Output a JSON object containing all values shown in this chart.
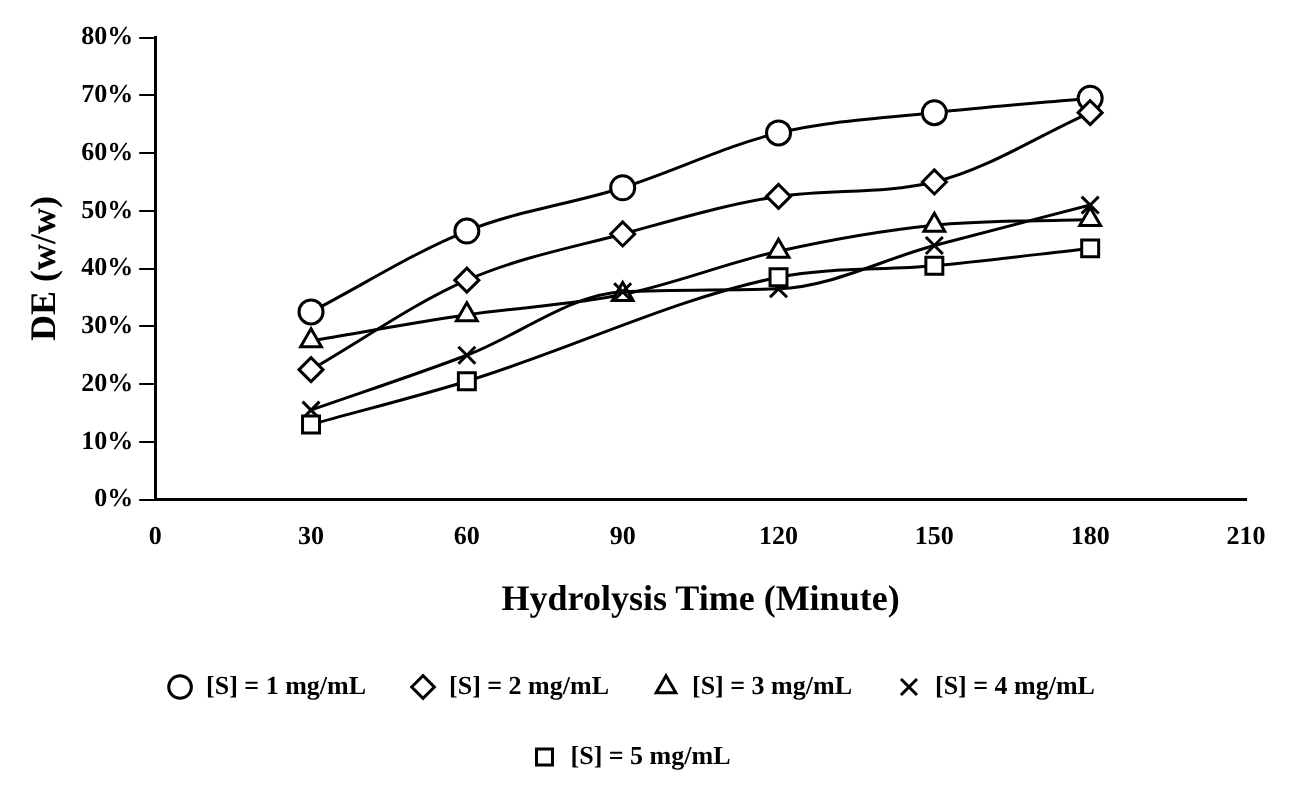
{
  "chart_data": {
    "type": "line",
    "xlabel": "Hydrolysis Time (Minute)",
    "ylabel": "DE (w/w)",
    "xlim": [
      0,
      210
    ],
    "xticks": [
      0,
      30,
      60,
      90,
      120,
      150,
      180,
      210
    ],
    "ylim": [
      0,
      80
    ],
    "yticks": [
      {
        "value": 0,
        "label": "0%"
      },
      {
        "value": 10,
        "label": "10%"
      },
      {
        "value": 20,
        "label": "20%"
      },
      {
        "value": 30,
        "label": "30%"
      },
      {
        "value": 40,
        "label": "40%"
      },
      {
        "value": 50,
        "label": "50%"
      },
      {
        "value": 60,
        "label": "60%"
      },
      {
        "value": 70,
        "label": "70%"
      },
      {
        "value": 80,
        "label": "80%"
      }
    ],
    "grid": false,
    "legend": "bottom",
    "line_style": "solid",
    "series": [
      {
        "name": "[S] = 1 mg/mL",
        "color": "#000000",
        "marker": "circle",
        "x": [
          30,
          60,
          90,
          120,
          150,
          180
        ],
        "values": [
          32.5,
          46.5,
          54,
          63.5,
          67,
          69.5
        ]
      },
      {
        "name": "[S] = 2 mg/mL",
        "color": "#000000",
        "marker": "diamond",
        "x": [
          30,
          60,
          90,
          120,
          150,
          180
        ],
        "values": [
          22.5,
          38,
          46,
          52.5,
          55,
          67
        ]
      },
      {
        "name": "[S] = 3 mg/mL",
        "color": "#000000",
        "marker": "triangle",
        "x": [
          30,
          60,
          90,
          120,
          150,
          180
        ],
        "values": [
          27.5,
          32,
          35.5,
          43,
          47.5,
          48.5
        ]
      },
      {
        "name": "[S] = 4 mg/mL",
        "color": "#000000",
        "marker": "cross",
        "x": [
          30,
          60,
          90,
          120,
          150,
          180
        ],
        "values": [
          15.5,
          25,
          36,
          36.5,
          44,
          51
        ]
      },
      {
        "name": "[S] = 5 mg/mL",
        "color": "#000000",
        "marker": "square",
        "x": [
          30,
          60,
          120,
          150,
          180
        ],
        "values": [
          13,
          20.5,
          38.5,
          40.5,
          43.5
        ]
      }
    ]
  }
}
